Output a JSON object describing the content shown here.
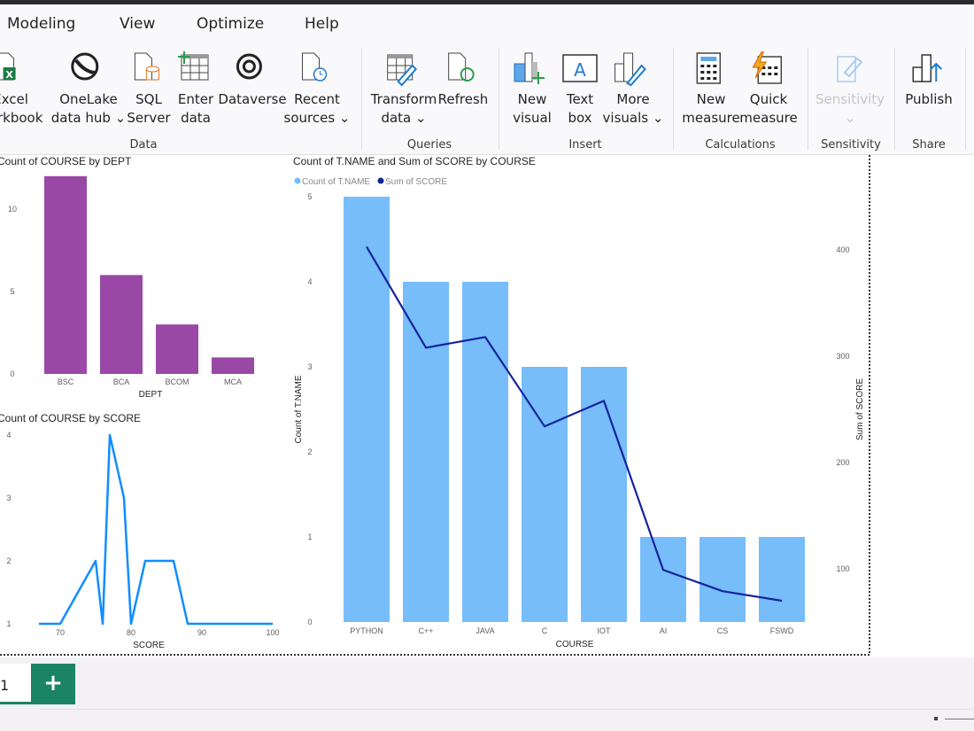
{
  "menu": [
    "Modeling",
    "View",
    "Optimize",
    "Help"
  ],
  "ribbon": {
    "buttons": [
      {
        "l1": "Excel",
        "l2": "workbook",
        "icon": "excel-icon"
      },
      {
        "l1": "OneLake",
        "l2": "data hub ⌄",
        "icon": "onelake-icon"
      },
      {
        "l1": "SQL",
        "l2": "Server",
        "icon": "sql-server-icon"
      },
      {
        "l1": "Enter",
        "l2": "data",
        "icon": "enter-data-icon"
      },
      {
        "l1": "Dataverse",
        "l2": "",
        "icon": "dataverse-icon"
      },
      {
        "l1": "Recent",
        "l2": "sources ⌄",
        "icon": "recent-sources-icon"
      },
      {
        "l1": "Transform",
        "l2": "data ⌄",
        "icon": "transform-data-icon"
      },
      {
        "l1": "Refresh",
        "l2": "",
        "icon": "refresh-icon"
      },
      {
        "l1": "New",
        "l2": "visual",
        "icon": "new-visual-icon"
      },
      {
        "l1": "Text",
        "l2": "box",
        "icon": "text-box-icon"
      },
      {
        "l1": "More",
        "l2": "visuals ⌄",
        "icon": "more-visuals-icon"
      },
      {
        "l1": "New",
        "l2": "measure",
        "icon": "new-measure-icon"
      },
      {
        "l1": "Quick",
        "l2": "measure",
        "icon": "quick-measure-icon"
      },
      {
        "l1": "Sensitivity",
        "l2": "⌄",
        "icon": "sensitivity-icon"
      },
      {
        "l1": "Publish",
        "l2": "",
        "icon": "publish-icon"
      }
    ],
    "groups": [
      "Data",
      "Queries",
      "Insert",
      "Calculations",
      "Sensitivity",
      "Share"
    ]
  },
  "colors": {
    "dept_bar": "#9a48a6",
    "score_line": "#118dff",
    "count_bar": "#77bdfa",
    "sum_line": "#12239e",
    "accent": "#1a8463"
  },
  "chart_data": [
    {
      "type": "bar",
      "title": "Count of COURSE by DEPT",
      "xlabel": "DEPT",
      "ylabel": "",
      "categories": [
        "BSC",
        "BCA",
        "BCOM",
        "MCA"
      ],
      "values": [
        12,
        6,
        3,
        1
      ],
      "yticks": [
        "0",
        "5",
        "10"
      ],
      "ylim": [
        0,
        13
      ],
      "grid": false
    },
    {
      "type": "line",
      "title": "Count of COURSE by SCORE",
      "xlabel": "SCORE",
      "ylabel": "",
      "x": [
        67,
        70,
        75,
        76,
        77,
        79,
        80,
        82,
        86,
        88,
        100
      ],
      "y": [
        1,
        1,
        2,
        1,
        4,
        3,
        1,
        2,
        2,
        1,
        1
      ],
      "xticks": [
        "70",
        "80",
        "90",
        "100"
      ],
      "yticks": [
        "1",
        "2",
        "3",
        "4"
      ],
      "xlim": [
        67,
        100
      ],
      "ylim": [
        1,
        4
      ],
      "grid": false
    },
    {
      "type": "bar+line",
      "title": "Count of T.NAME and Sum of SCORE by COURSE",
      "xlabel": "COURSE",
      "ylabel": "Count of T.NAME",
      "y2label": "Sum of SCORE",
      "legend": "top-left",
      "categories": [
        "PYTHON",
        "C++",
        "JAVA",
        "C",
        "IOT",
        "AI",
        "CS",
        "FSWD"
      ],
      "series": [
        {
          "name": "Count of T.NAME",
          "type": "bar",
          "axis": "left",
          "values": [
            5,
            4,
            4,
            3,
            3,
            1,
            1,
            1
          ]
        },
        {
          "name": "Sum of SCORE",
          "type": "line",
          "axis": "right",
          "values": [
            403,
            308,
            318,
            234,
            258,
            99,
            79,
            70
          ]
        }
      ],
      "yticks": [
        "0",
        "1",
        "2",
        "3",
        "4",
        "5"
      ],
      "y2ticks": [
        "100",
        "200",
        "300",
        "400"
      ],
      "ylim": [
        0,
        5
      ],
      "grid": false
    }
  ],
  "tabs": {
    "page": "1",
    "add": "+"
  }
}
